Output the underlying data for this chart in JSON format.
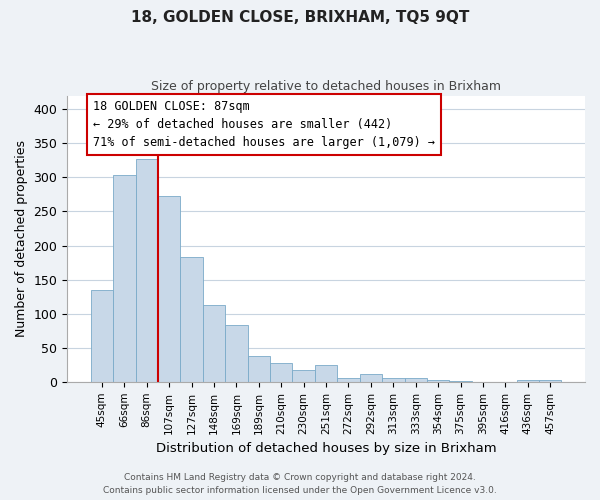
{
  "title": "18, GOLDEN CLOSE, BRIXHAM, TQ5 9QT",
  "subtitle": "Size of property relative to detached houses in Brixham",
  "xlabel": "Distribution of detached houses by size in Brixham",
  "ylabel": "Number of detached properties",
  "bar_labels": [
    "45sqm",
    "66sqm",
    "86sqm",
    "107sqm",
    "127sqm",
    "148sqm",
    "169sqm",
    "189sqm",
    "210sqm",
    "230sqm",
    "251sqm",
    "272sqm",
    "292sqm",
    "313sqm",
    "333sqm",
    "354sqm",
    "375sqm",
    "395sqm",
    "416sqm",
    "436sqm",
    "457sqm"
  ],
  "bar_values": [
    135,
    303,
    327,
    272,
    183,
    113,
    84,
    38,
    28,
    17,
    25,
    5,
    11,
    5,
    5,
    2,
    1,
    0,
    0,
    3,
    3
  ],
  "bar_color": "#c8d8e8",
  "bar_edge_color": "#7aaac8",
  "marker_line_color": "#cc0000",
  "annotation_title": "18 GOLDEN CLOSE: 87sqm",
  "annotation_line1": "← 29% of detached houses are smaller (442)",
  "annotation_line2": "71% of semi-detached houses are larger (1,079) →",
  "ylim": [
    0,
    420
  ],
  "yticks": [
    0,
    50,
    100,
    150,
    200,
    250,
    300,
    350,
    400
  ],
  "footer_line1": "Contains HM Land Registry data © Crown copyright and database right 2024.",
  "footer_line2": "Contains public sector information licensed under the Open Government Licence v3.0.",
  "bg_color": "#eef2f6",
  "plot_bg_color": "#ffffff",
  "grid_color": "#c8d4e0"
}
